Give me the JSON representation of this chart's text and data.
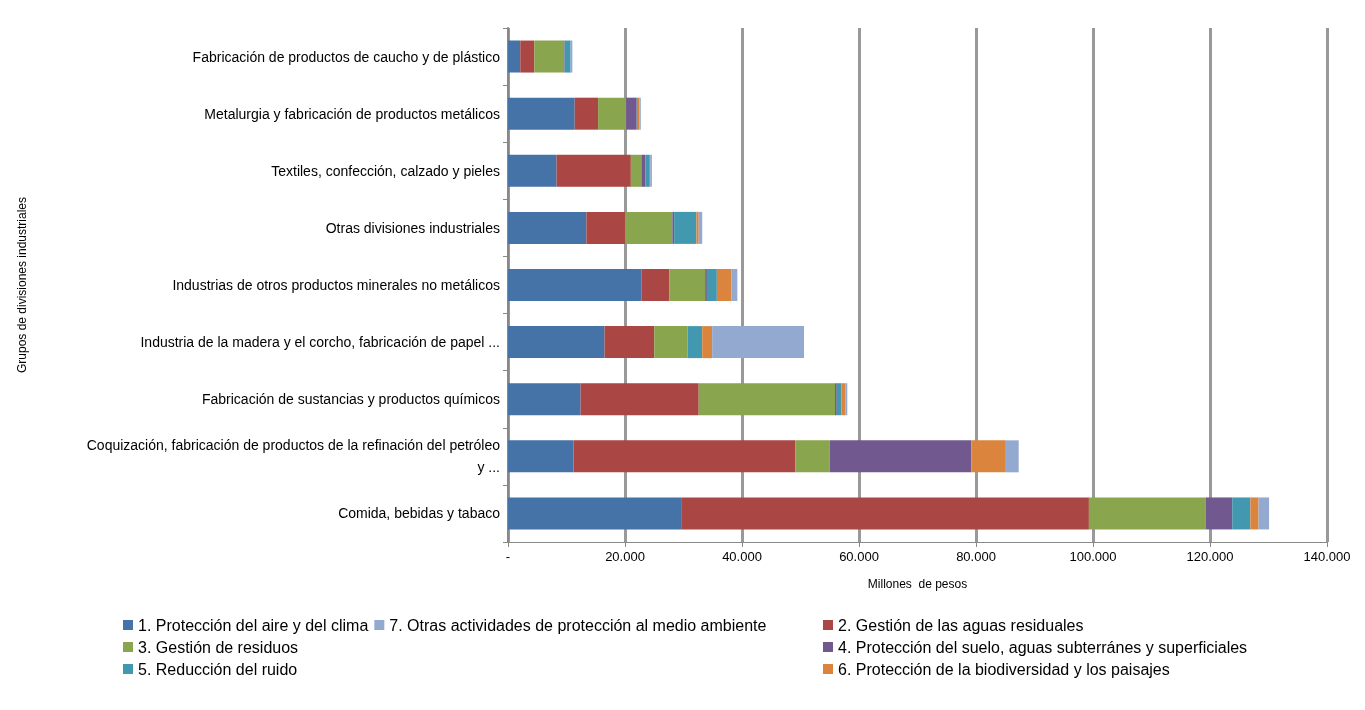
{
  "chart_data": {
    "type": "bar",
    "orientation": "horizontal",
    "stacked": true,
    "xlabel": "Millones  de pesos",
    "ylabel": "Grupos de divisiones industriales",
    "categories": [
      "Fabricación de productos de caucho y de plástico",
      "Metalurgia y fabricación de productos metálicos",
      "Textiles, confección, calzado y pieles",
      "Otras divisiones industriales",
      "Industrias de otros productos minerales no metálicos",
      "Industria de la madera y el corcho, fabricación de papel ...",
      "Fabricación de sustancias y productos químicos",
      "Coquización, fabricación de productos de la refinación del petróleo y ...",
      "Comida, bebidas y tabaco"
    ],
    "series": [
      {
        "name": "1. Protección del aire y del clima",
        "color": "#4572a7",
        "values": [
          2100,
          11400,
          8300,
          13400,
          22800,
          16500,
          12400,
          11200,
          29600
        ]
      },
      {
        "name": "2. Gestión de las aguas residuales",
        "color": "#aa4643",
        "values": [
          2400,
          4000,
          12700,
          6600,
          4800,
          8500,
          20200,
          37900,
          69700
        ]
      },
      {
        "name": "3. Gestión de residuos",
        "color": "#89a54e",
        "values": [
          5100,
          4800,
          1800,
          8100,
          6100,
          5700,
          23300,
          5900,
          20000
        ]
      },
      {
        "name": "4. Protección del suelo, aguas subterránes y superficiales",
        "color": "#71588f",
        "values": [
          100,
          1800,
          700,
          300,
          300,
          0,
          300,
          24200,
          4500
        ]
      },
      {
        "name": "5. Reducción del ruido",
        "color": "#4198af",
        "values": [
          1000,
          200,
          600,
          3800,
          1700,
          2500,
          800,
          0,
          3100
        ]
      },
      {
        "name": "6. Protección de la biodiversidad y los paisajes",
        "color": "#db843d",
        "values": [
          null,
          300,
          200,
          400,
          2500,
          1700,
          700,
          5900,
          1400
        ]
      },
      {
        "name": "7. Otras actividades de protección al medio ambiente",
        "color": "#93a9cf",
        "values": [
          300,
          200,
          300,
          600,
          1000,
          15700,
          300,
          2200,
          1800
        ]
      }
    ],
    "xlim": [
      0,
      140000
    ],
    "xticks": [
      {
        "value": 0,
        "label": "-"
      },
      {
        "value": 20000,
        "label": "20.000"
      },
      {
        "value": 40000,
        "label": "40.000"
      },
      {
        "value": 60000,
        "label": "60.000"
      },
      {
        "value": 80000,
        "label": "80.000"
      },
      {
        "value": 100000,
        "label": "100.000"
      },
      {
        "value": 120000,
        "label": "120.000"
      },
      {
        "value": 140000,
        "label": "140.000"
      }
    ],
    "grid": "x",
    "legend": "bottom"
  }
}
